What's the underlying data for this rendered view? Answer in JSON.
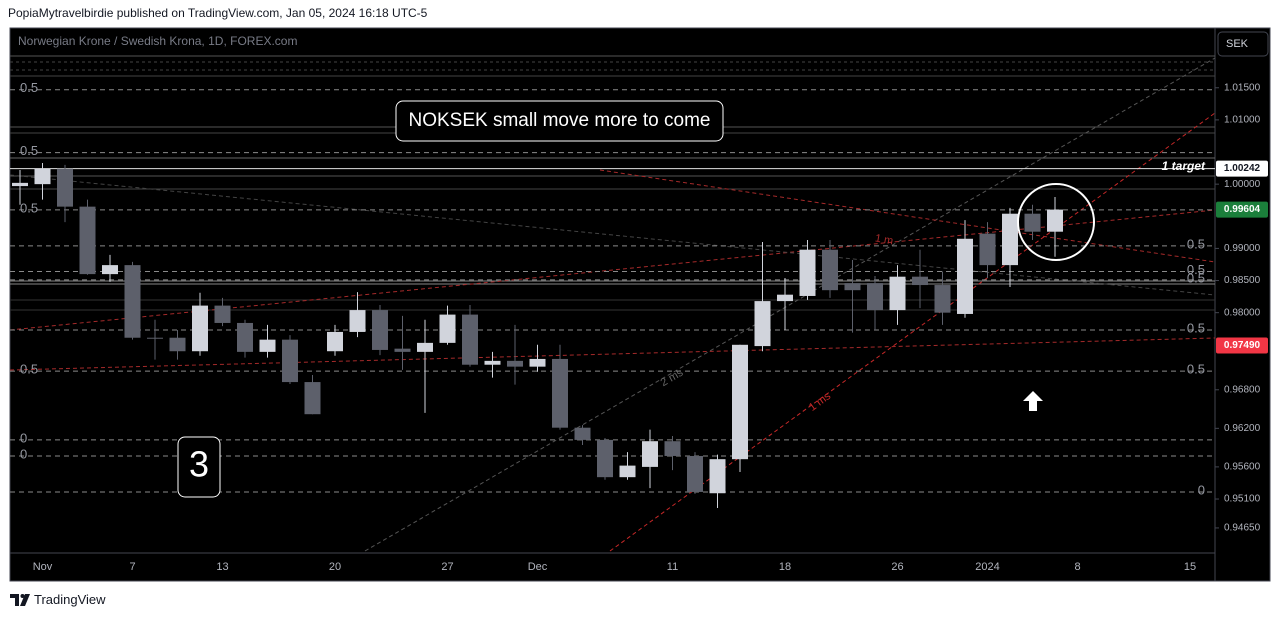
{
  "header": {
    "text": "PopiaMytravelbirdie published on TradingView.com, Jan 05, 2024 16:18 UTC-5"
  },
  "footer": {
    "brand": "TradingView"
  },
  "chart_data": {
    "type": "candlestick",
    "title": "Norwegian Krone / Swedish Krona, 1D, FOREX.com",
    "currency": "SEK",
    "categories": [
      null,
      "Nov",
      null,
      null,
      null,
      "7",
      null,
      null,
      null,
      "13",
      null,
      null,
      null,
      null,
      "20",
      null,
      null,
      null,
      null,
      "27",
      null,
      null,
      null,
      "Dec",
      null,
      null,
      null,
      null,
      null,
      "11",
      null,
      null,
      null,
      null,
      "18",
      null,
      null,
      null,
      null,
      "26",
      null,
      null,
      null,
      "2024",
      null,
      null,
      null,
      "8",
      null,
      null,
      null,
      null,
      "15"
    ],
    "open": [
      0.9997,
      1.0,
      1.0024,
      0.9965,
      0.986,
      0.9874,
      0.9761,
      0.9761,
      0.974,
      0.9811,
      0.9784,
      0.9739,
      0.9758,
      0.9692,
      0.974,
      0.977,
      0.9804,
      0.9744,
      0.9739,
      0.9753,
      0.9797,
      0.9719,
      0.9725,
      0.9716,
      0.9728,
      0.9621,
      0.9602,
      0.9544,
      0.956,
      0.96,
      0.9577,
      0.9519,
      0.9572,
      0.9748,
      0.9818,
      0.9826,
      0.9898,
      0.9846,
      0.9846,
      0.9804,
      0.9856,
      0.9843,
      0.9798,
      0.9923,
      0.9874,
      0.9954,
      0.9926,
      null,
      null,
      null,
      null,
      null,
      null
    ],
    "high": [
      1.0022,
      1.0033,
      1.003,
      0.9976,
      0.989,
      0.9879,
      0.9789,
      0.9773,
      0.9831,
      0.9823,
      0.9789,
      0.9781,
      0.9765,
      0.9703,
      0.9781,
      0.9832,
      0.9812,
      0.9795,
      0.9789,
      0.9811,
      0.9812,
      0.9739,
      0.9781,
      0.975,
      0.975,
      0.9625,
      0.9605,
      0.9583,
      0.9618,
      0.9608,
      0.9583,
      0.9579,
      0.975,
      0.991,
      0.9854,
      0.9913,
      0.9913,
      0.9882,
      0.9857,
      0.9874,
      0.9898,
      0.9864,
      0.9944,
      0.9941,
      0.9963,
      0.9968,
      0.998,
      null,
      null,
      null,
      null,
      null,
      null
    ],
    "low": [
      0.9968,
      0.9976,
      0.9941,
      0.9859,
      0.9848,
      0.9758,
      0.9727,
      0.9727,
      0.9733,
      0.9779,
      0.973,
      0.973,
      0.9689,
      0.9642,
      0.9733,
      0.9762,
      0.9734,
      0.9711,
      0.9644,
      0.975,
      0.9716,
      0.9699,
      0.9688,
      0.9708,
      0.9618,
      0.9594,
      0.954,
      0.954,
      0.9527,
      0.9555,
      0.9518,
      0.9496,
      0.9552,
      0.974,
      0.9773,
      0.982,
      0.9823,
      0.9769,
      0.9773,
      0.9781,
      0.9807,
      0.9781,
      0.9792,
      0.9854,
      0.984,
      0.9913,
      0.9887,
      null,
      null,
      null,
      null,
      null,
      null
    ],
    "close": [
      1.0002,
      1.0024,
      0.9965,
      0.986,
      0.9874,
      0.9761,
      0.976,
      0.974,
      0.9811,
      0.9784,
      0.9739,
      0.9758,
      0.9692,
      0.9642,
      0.977,
      0.9804,
      0.9742,
      0.9739,
      0.9753,
      0.9797,
      0.9719,
      0.9725,
      0.9716,
      0.9728,
      0.9621,
      0.9602,
      0.9544,
      0.9562,
      0.96,
      0.9577,
      0.9521,
      0.9572,
      0.975,
      0.9818,
      0.9828,
      0.9898,
      0.9835,
      0.9835,
      0.9804,
      0.9856,
      0.9843,
      0.98,
      0.9915,
      0.9874,
      0.9954,
      0.9926,
      0.99604,
      null,
      null,
      null,
      null,
      null,
      null
    ],
    "up_color": "#d1d4dc",
    "down_color": "#5d606b",
    "ylim": [
      0.9426,
      1.0243
    ],
    "yticks": [
      {
        "value": 1.015,
        "label": "1.01500"
      },
      {
        "value": 1.01,
        "label": "1.01000"
      },
      {
        "value": 1.0,
        "label": "1.00000"
      },
      {
        "value": 0.99,
        "label": "0.99000"
      },
      {
        "value": 0.985,
        "label": "0.98500"
      },
      {
        "value": 0.98,
        "label": "0.98000"
      },
      {
        "value": 0.968,
        "label": "0.96800"
      },
      {
        "value": 0.962,
        "label": "0.96200"
      },
      {
        "value": 0.956,
        "label": "0.95600"
      },
      {
        "value": 0.951,
        "label": "0.95100"
      },
      {
        "value": 0.9465,
        "label": "0.94650"
      }
    ],
    "price_labels": [
      {
        "value": 1.00242,
        "label": "1.00242",
        "color": "#ffffff",
        "text_color": "#131722"
      },
      {
        "value": 0.99604,
        "label": "0.99604",
        "color": "#1b7f3b",
        "text_color": "#ffffff"
      },
      {
        "value": 0.9749,
        "label": "0.97490",
        "color": "#f23645",
        "text_color": "#ffffff"
      }
    ],
    "target": {
      "value": 1.00242,
      "label": "1 target"
    },
    "levels": [
      {
        "value": 1.0147,
        "label": "0.5",
        "side": "left"
      },
      {
        "value": 1.0049,
        "label": "0.5",
        "side": "left"
      },
      {
        "value": 0.996,
        "label": "0.5",
        "side": "left"
      },
      {
        "value": 0.9904,
        "label": "0.5",
        "side": "right"
      },
      {
        "value": 0.9864,
        "label": "0.5",
        "side": "right"
      },
      {
        "value": 0.9851,
        "label": "0.5",
        "side": "right"
      },
      {
        "value": 0.9773,
        "label": "0.5",
        "side": "right"
      },
      {
        "value": 0.9709,
        "label": "0.5",
        "side": "both"
      },
      {
        "value": 0.9602,
        "label": "0",
        "side": "left"
      },
      {
        "value": 0.9577,
        "label": "0",
        "side": "left"
      },
      {
        "value": 0.9521,
        "label": "0",
        "side": "right"
      }
    ],
    "annotation": "NOKSEK small move more to come",
    "wave_label": "3",
    "drawing_labels": [
      "1 ms",
      "2 ms",
      "1 m"
    ]
  }
}
